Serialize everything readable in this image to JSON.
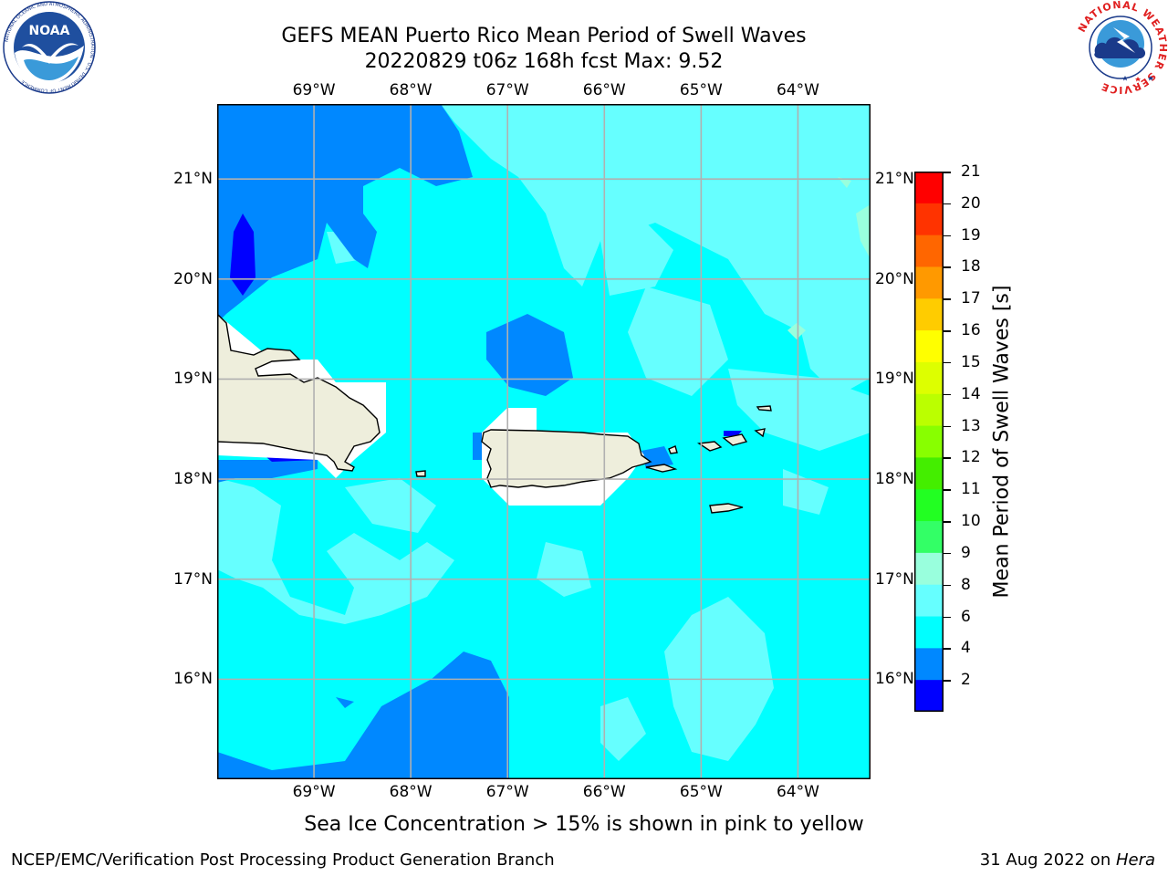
{
  "header": {
    "title_line1": "GEFS MEAN Puerto Rico Mean Period of Swell Waves",
    "title_line2": "20220829 t06z 168h fcst   Max: 9.52"
  },
  "map": {
    "lon_labels": [
      "69°W",
      "68°W",
      "67°W",
      "66°W",
      "65°W",
      "64°W"
    ],
    "lat_labels": [
      "21°N",
      "20°N",
      "19°N",
      "18°N",
      "17°N",
      "16°N"
    ],
    "lon_values": [
      -69,
      -68,
      -67,
      -66,
      -65,
      -64
    ],
    "lat_values": [
      21,
      20,
      19,
      18,
      17,
      16
    ],
    "extent": {
      "lon_min": -70.0,
      "lon_max": -63.25,
      "lat_min": 15.0,
      "lat_max": 21.75
    },
    "gridlines": true,
    "land_color": "#eeeedc",
    "ocean_base_color": "#00ffff"
  },
  "colorbar": {
    "title": "Mean Period of Swell Waves [s]",
    "ticks": [
      "21",
      "20",
      "19",
      "18",
      "17",
      "16",
      "15",
      "14",
      "13",
      "12",
      "11",
      "10",
      "9",
      "8",
      "6",
      "4",
      "2"
    ],
    "colors": [
      "#ff0000",
      "#ff3300",
      "#ff6600",
      "#ff9900",
      "#ffcc00",
      "#ffff00",
      "#ddff00",
      "#bbff00",
      "#88ff00",
      "#44ee00",
      "#22ff22",
      "#33ff66",
      "#99ffdd",
      "#66ffff",
      "#00ffff",
      "#0088ff",
      "#0000ff"
    ]
  },
  "footer": {
    "note": "Sea Ice Concentration > 15% is shown in pink to yellow",
    "credit": "NCEP/EMC/Verification Post Processing Product Generation Branch",
    "date_prefix": "31 Aug 2022 on ",
    "date_host": "Hera"
  },
  "logos": {
    "noaa_text": "NOAA",
    "noaa_ring": "NATIONAL OCEANIC AND ATMOSPHERIC ADMINISTRATION · U.S. DEPARTMENT OF COMMERCE",
    "nws_ring": "NATIONAL WEATHER SERVICE"
  }
}
